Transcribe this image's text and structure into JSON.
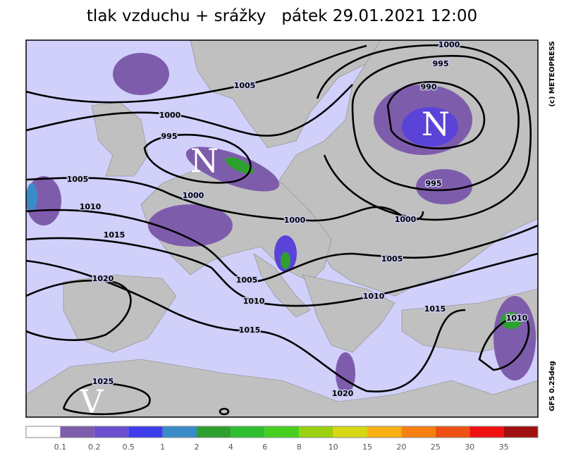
{
  "header": {
    "title": "tlak vzduchu + srážky",
    "date": "pátek 29.01.2021 12:00"
  },
  "credits": {
    "copyright": "(c) METEOPRESS",
    "model": "GFS 0.25deg"
  },
  "pressure_centers": [
    "N",
    "N",
    "V"
  ],
  "isobar_labels": [
    1005,
    1000,
    995,
    1005,
    1010,
    1000,
    1000,
    1015,
    1020,
    1005,
    1010,
    1015,
    1025,
    1020,
    1000,
    995,
    990,
    995,
    1000,
    1005,
    1010,
    1015,
    1010
  ],
  "legend": {
    "colors": [
      "#ffffff",
      "#7e5cac",
      "#6a4fcf",
      "#3c3cec",
      "#3a8cc8",
      "#2ea02e",
      "#2fbe2f",
      "#48d020",
      "#9ad010",
      "#d8d812",
      "#f8b012",
      "#f88012",
      "#f05012",
      "#f01010",
      "#a01010"
    ],
    "labels": [
      0.1,
      0.2,
      0.5,
      1,
      2,
      4,
      6,
      8,
      10,
      15,
      20,
      25,
      30,
      35
    ]
  }
}
